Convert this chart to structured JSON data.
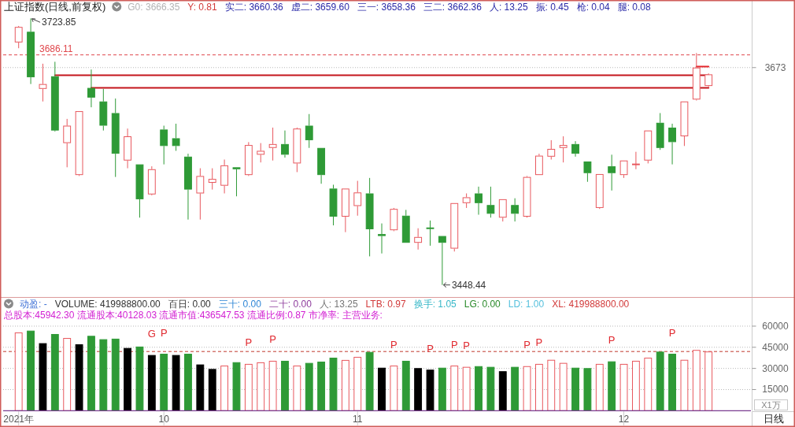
{
  "chart_data": [
    {
      "type": "candlestick",
      "title": "上证指数(日线,前复权)",
      "annotations": [
        "G0: 3666.35",
        "Y: 0.81",
        "实二: 3660.36",
        "虚二: 3659.60",
        "三一: 3658.36",
        "三二: 3662.36",
        "人: 13.25",
        "振: 0.45",
        "枪: 0.04",
        "腿: 0.08"
      ],
      "categories": [
        null,
        null,
        null,
        null,
        null,
        null,
        null,
        null,
        null,
        null,
        null,
        null,
        null,
        null,
        null,
        null,
        null,
        null,
        null,
        null,
        null,
        null,
        null,
        null,
        null,
        null,
        null,
        null,
        null,
        null,
        null,
        null,
        null,
        null,
        null,
        null,
        null,
        null,
        null,
        null,
        null,
        null,
        null,
        null,
        null,
        null,
        null,
        null,
        null,
        null,
        null,
        null,
        null,
        null,
        null,
        null,
        null,
        null
      ],
      "ohlc": [
        [
          3699,
          3716,
          3693,
          3715
        ],
        [
          3710,
          3723.85,
          3656,
          3663
        ],
        [
          3651,
          3677,
          3638,
          3656
        ],
        [
          3664,
          3679,
          3607,
          3608
        ],
        [
          3595,
          3620,
          3570,
          3613
        ],
        [
          3562,
          3628,
          3561,
          3628
        ],
        [
          3652,
          3671,
          3632,
          3642
        ],
        [
          3638,
          3651,
          3608,
          3613
        ],
        [
          3626,
          3641,
          3560,
          3584
        ],
        [
          3577,
          3610,
          3569,
          3602
        ],
        [
          3573,
          3573,
          3518,
          3537
        ],
        [
          3542,
          3571,
          3541,
          3568
        ],
        [
          3609,
          3613,
          3573,
          3592
        ],
        [
          3600,
          3615,
          3587,
          3592
        ],
        [
          3581,
          3584,
          3516,
          3547
        ],
        [
          3543,
          3569,
          3516,
          3561
        ],
        [
          3554,
          3569,
          3547,
          3558
        ],
        [
          3551,
          3578,
          3543,
          3572
        ],
        [
          3570,
          3570,
          3540,
          3568
        ],
        [
          3562,
          3596,
          3561,
          3593
        ],
        [
          3583,
          3595,
          3575,
          3587
        ],
        [
          3590,
          3611,
          3577,
          3594
        ],
        [
          3594,
          3608,
          3580,
          3583
        ],
        [
          3574,
          3611,
          3565,
          3610
        ],
        [
          3613,
          3625,
          3590,
          3598
        ],
        [
          3590,
          3590,
          3553,
          3562
        ],
        [
          3548,
          3552,
          3510,
          3519
        ],
        [
          3519,
          3548,
          3503,
          3548
        ],
        [
          3530,
          3556,
          3520,
          3544
        ],
        [
          3543,
          3559,
          3478,
          3506
        ],
        [
          3501,
          3512,
          3481,
          3499
        ],
        [
          3505,
          3528,
          3504,
          3527
        ],
        [
          3520,
          3526,
          3492,
          3492
        ],
        [
          3492,
          3507,
          3485,
          3498
        ],
        [
          3507,
          3515,
          3489,
          3507
        ],
        [
          3499,
          3499,
          3448.44,
          3492
        ],
        [
          3486,
          3533,
          3483,
          3533
        ],
        [
          3533,
          3543,
          3528,
          3539
        ],
        [
          3543,
          3550,
          3521,
          3533
        ],
        [
          3531,
          3550,
          3518,
          3522
        ],
        [
          3518,
          3537,
          3514,
          3537
        ],
        [
          3531,
          3538,
          3514,
          3522
        ],
        [
          3519,
          3561,
          3518,
          3560
        ],
        [
          3562,
          3584,
          3562,
          3582
        ],
        [
          3581,
          3598,
          3578,
          3589
        ],
        [
          3590,
          3602,
          3575,
          3593
        ],
        [
          3594,
          3597,
          3581,
          3584
        ],
        [
          3576,
          3576,
          3555,
          3564
        ],
        [
          3528,
          3563,
          3527,
          3563
        ],
        [
          3571,
          3583,
          3546,
          3564
        ],
        [
          3562,
          3577,
          3559,
          3577
        ],
        [
          3573,
          3586,
          3568,
          3573
        ],
        [
          3577,
          3608,
          3574,
          3608
        ],
        [
          3616,
          3626,
          3588,
          3590
        ],
        [
          3611,
          3615,
          3573,
          3596
        ],
        [
          3602,
          3638,
          3592,
          3638
        ],
        [
          3640,
          3688,
          3639,
          3673
        ],
        [
          3654,
          3667,
          3653,
          3666
        ]
      ],
      "value_labels": [
        null,
        "3723.85",
        null,
        null,
        null,
        null,
        null,
        null,
        null,
        null,
        null,
        null,
        null,
        null,
        null,
        null,
        null,
        null,
        null,
        null,
        null,
        null,
        null,
        null,
        null,
        null,
        null,
        null,
        null,
        null,
        null,
        null,
        null,
        null,
        null,
        "3448.44",
        null,
        null,
        null,
        null,
        null,
        null,
        null,
        null,
        null,
        null,
        null,
        null,
        null,
        null,
        null,
        null,
        null,
        null,
        null,
        null,
        null,
        null
      ],
      "colors": [
        "#e8585e",
        "#2e9a36",
        "#e8585e",
        "#2e9a36",
        "#e8585e",
        "#e8585e",
        "#2e9a36",
        "#2e9a36",
        "#2e9a36",
        "#e8585e",
        "#2e9a36",
        "#e8585e",
        "#2e9a36",
        "#2e9a36",
        "#2e9a36",
        "#e8585e",
        "#e8585e",
        "#e8585e",
        "#2e9a36",
        "#e8585e",
        "#e8585e",
        "#e8585e",
        "#2e9a36",
        "#e8585e",
        "#2e9a36",
        "#2e9a36",
        "#2e9a36",
        "#e8585e",
        "#e8585e",
        "#2e9a36",
        "#2e9a36",
        "#e8585e",
        "#2e9a36",
        "#e8585e",
        "#2e9a36",
        "#2e9a36",
        "#e8585e",
        "#e8585e",
        "#2e9a36",
        "#2e9a36",
        "#e8585e",
        "#2e9a36",
        "#e8585e",
        "#e8585e",
        "#e8585e",
        "#e8585e",
        "#2e9a36",
        "#2e9a36",
        "#e8585e",
        "#2e9a36",
        "#e8585e",
        "#e8585e",
        "#e8585e",
        "#2e9a36",
        "#2e9a36",
        "#e8585e",
        "#e8585e",
        "#e8585e"
      ],
      "series": [
        {
          "type": "line",
          "color": "#c4161c",
          "values": [
            null,
            null,
            null,
            3665,
            3665,
            3665,
            3665,
            3665,
            3665,
            3665,
            3665,
            3665,
            3665,
            3665,
            3665,
            3665,
            3665,
            3665,
            3665,
            3665,
            3665,
            3665,
            3665,
            3665,
            3665,
            3665,
            3665,
            3665,
            3665,
            3665,
            3665,
            3665,
            3665,
            3665,
            3665,
            3665,
            3665,
            3665,
            3665,
            3665,
            3665,
            3665,
            3665,
            3665,
            3665,
            3665,
            3665,
            3665,
            3665,
            3665,
            3665,
            3665,
            3665,
            3665,
            3665,
            3665,
            3665,
            3665
          ]
        },
        {
          "type": "line",
          "color": "#c4161c",
          "values": [
            null,
            null,
            null,
            null,
            null,
            null,
            3652,
            3652,
            3652,
            3652,
            3652,
            3652,
            3652,
            3652,
            3652,
            3652,
            3652,
            3652,
            3652,
            3652,
            3652,
            3652,
            3652,
            3652,
            3652,
            3652,
            3652,
            3652,
            3652,
            3652,
            3652,
            3652,
            3652,
            3652,
            3652,
            3652,
            3652,
            3652,
            3652,
            3652,
            3652,
            3652,
            3652,
            3652,
            3652,
            3652,
            3652,
            3652,
            3652,
            3652,
            3652,
            3652,
            3652,
            3652,
            3652,
            3652,
            3652,
            3652
          ]
        },
        {
          "type": "line",
          "color": "#e4262b",
          "values": [
            null,
            null,
            null,
            null,
            null,
            null,
            null,
            null,
            null,
            null,
            null,
            null,
            null,
            null,
            null,
            null,
            null,
            null,
            null,
            null,
            null,
            null,
            null,
            null,
            null,
            null,
            null,
            null,
            null,
            null,
            null,
            null,
            null,
            null,
            null,
            null,
            null,
            null,
            null,
            null,
            null,
            null,
            null,
            null,
            null,
            null,
            null,
            null,
            null,
            null,
            null,
            null,
            null,
            null,
            null,
            null,
            3674,
            3674
          ]
        }
      ],
      "ref_lines": [
        {
          "axis": "y",
          "value": 3686.11,
          "label": "3686.11",
          "color": "#e0474c",
          "line_style": "dashed"
        },
        {
          "axis": "y",
          "value": 3673,
          "label": "3673",
          "color": "#b8b8b8",
          "line_style": "dotted"
        }
      ]
    },
    {
      "type": "bar",
      "subtitle": "总股本:45942.30 流通股本:40128.03 流通市值:436547.53 流通比例:0.87 市净率: 主营业务:",
      "annotations": [
        "动盈: -",
        "VOLUME: 419988800.00",
        "百日: 0.00",
        "三十: 0.00",
        "二十: 0.00",
        "人: 13.25",
        "LTB: 0.97",
        "换手: 1.05",
        "LG: 0.00",
        "LD: 1.00",
        "XL: 419988800.00"
      ],
      "categories": [
        "2021年",
        null,
        null,
        null,
        null,
        null,
        null,
        null,
        null,
        null,
        null,
        null,
        "10",
        null,
        null,
        null,
        null,
        null,
        null,
        null,
        null,
        null,
        null,
        null,
        null,
        null,
        null,
        null,
        "11",
        null,
        null,
        null,
        null,
        null,
        null,
        null,
        null,
        null,
        null,
        null,
        null,
        null,
        null,
        null,
        null,
        null,
        null,
        null,
        null,
        null,
        "12",
        null,
        null,
        null,
        null,
        null,
        null,
        null
      ],
      "series": [
        {
          "values": [
            55500,
            56800,
            47900,
            54400,
            51600,
            47100,
            53100,
            50700,
            51100,
            44500,
            45500,
            39500,
            40400,
            39500,
            40400,
            32800,
            29600,
            32000,
            34400,
            33200,
            34300,
            35400,
            35400,
            32000,
            33900,
            34800,
            37600,
            36000,
            38200,
            41700,
            30500,
            32000,
            35400,
            30200,
            29100,
            30500,
            32000,
            31100,
            31600,
            31100,
            28000,
            31100,
            31600,
            33200,
            36100,
            33900,
            30500,
            30200,
            33200,
            35000,
            33200,
            35400,
            37600,
            41900,
            40400,
            36100,
            43100,
            42000
          ],
          "colors": [
            "#e8585e",
            "#2e9a36",
            "#000000",
            "#2e9a36",
            "#e8585e",
            "#000000",
            "#2e9a36",
            "#2e9a36",
            "#2e9a36",
            "#000000",
            "#2e9a36",
            "#000000",
            "#2e9a36",
            "#000000",
            "#2e9a36",
            "#000000",
            "#000000",
            "#e8585e",
            "#2e9a36",
            "#e8585e",
            "#e8585e",
            "#e8585e",
            "#2e9a36",
            "#e8585e",
            "#2e9a36",
            "#2e9a36",
            "#2e9a36",
            "#e8585e",
            "#e8585e",
            "#2e9a36",
            "#000000",
            "#e8585e",
            "#2e9a36",
            "#000000",
            "#000000",
            "#2e9a36",
            "#e8585e",
            "#e8585e",
            "#2e9a36",
            "#2e9a36",
            "#000000",
            "#2e9a36",
            "#e8585e",
            "#e8585e",
            "#e8585e",
            "#e8585e",
            "#2e9a36",
            "#2e9a36",
            "#e8585e",
            "#2e9a36",
            "#e8585e",
            "#e8585e",
            "#e8585e",
            "#2e9a36",
            "#2e9a36",
            "#e8585e",
            "#e8585e",
            "#e8585e"
          ],
          "value_labels": [
            null,
            null,
            null,
            null,
            null,
            null,
            null,
            null,
            null,
            null,
            null,
            "G",
            "P",
            null,
            null,
            null,
            null,
            null,
            null,
            "P",
            null,
            "P",
            null,
            null,
            null,
            null,
            null,
            null,
            null,
            null,
            null,
            "P",
            null,
            null,
            "P",
            null,
            "P",
            "P",
            null,
            null,
            null,
            null,
            "P",
            "P",
            null,
            null,
            null,
            null,
            null,
            "P",
            null,
            null,
            null,
            null,
            "P",
            null,
            null,
            null
          ]
        }
      ],
      "ylim": [
        0,
        80000
      ],
      "yticks": [
        15000,
        30000,
        45000,
        60000
      ],
      "grid": "y",
      "ylabel": "X1万",
      "xlabel": "日线",
      "ref_lines": [
        {
          "axis": "y",
          "value": 42000,
          "color": "#c0392b",
          "line_style": "dashed"
        }
      ]
    }
  ]
}
